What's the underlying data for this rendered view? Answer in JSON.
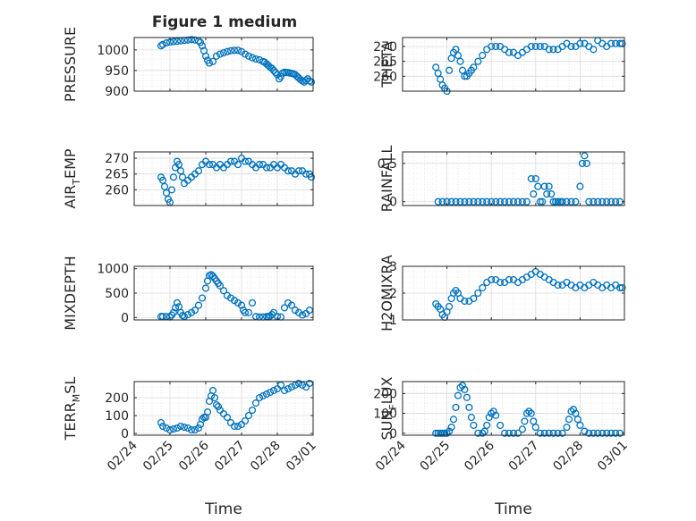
{
  "figure": {
    "title": "Figure 1 medium"
  },
  "style": {
    "marker_color": "#0072BD",
    "axis_color": "#262626",
    "grid_color": "#dcdcdc",
    "background": "#ffffff"
  },
  "chart_data": [
    {
      "type": "scatter",
      "ylabel": "PRESSURE",
      "ylim": [
        900,
        1030
      ],
      "yticks": [
        900,
        950,
        1000
      ],
      "ytick_labels": [
        "900",
        "950",
        "1000"
      ],
      "xlim": [
        0,
        5
      ],
      "xticks": [
        0,
        1,
        2,
        3,
        4,
        5
      ],
      "xtick_labels": [],
      "xlabel": "",
      "title": "Figure 1 medium",
      "x": [
        0.75,
        0.8,
        0.9,
        1.0,
        1.1,
        1.2,
        1.3,
        1.4,
        1.5,
        1.6,
        1.7,
        1.8,
        1.85,
        1.9,
        1.95,
        2.0,
        2.05,
        2.1,
        2.2,
        2.3,
        2.4,
        2.5,
        2.6,
        2.7,
        2.8,
        2.9,
        3.0,
        3.1,
        3.2,
        3.3,
        3.4,
        3.5,
        3.6,
        3.65,
        3.7,
        3.75,
        3.8,
        3.85,
        3.9,
        3.95,
        4.0,
        4.05,
        4.1,
        4.15,
        4.2,
        4.25,
        4.3,
        4.35,
        4.4,
        4.45,
        4.5,
        4.55,
        4.6,
        4.65,
        4.7,
        4.75,
        4.8,
        4.85,
        4.9,
        4.95
      ],
      "y": [
        1010,
        1013,
        1017,
        1019,
        1020,
        1021,
        1022,
        1023,
        1024,
        1025,
        1024,
        1022,
        1018,
        1010,
        998,
        985,
        975,
        968,
        972,
        985,
        990,
        993,
        996,
        998,
        999,
        999,
        996,
        990,
        985,
        981,
        978,
        976,
        972,
        970,
        966,
        962,
        958,
        955,
        950,
        945,
        940,
        930,
        935,
        944,
        946,
        945,
        945,
        944,
        943,
        942,
        940,
        936,
        932,
        928,
        925,
        922,
        926,
        930,
        925,
        922
      ]
    },
    {
      "type": "scatter",
      "ylabel": "THETA",
      "ylim": [
        255,
        273
      ],
      "yticks": [
        260,
        265,
        270
      ],
      "ytick_labels": [
        "260",
        "265",
        "270"
      ],
      "xlim": [
        0,
        5
      ],
      "xticks": [
        0,
        1,
        2,
        3,
        4,
        5
      ],
      "xtick_labels": [],
      "xlabel": "",
      "x": [
        0.75,
        0.8,
        0.85,
        0.9,
        0.95,
        1.0,
        1.05,
        1.1,
        1.15,
        1.2,
        1.25,
        1.3,
        1.35,
        1.4,
        1.45,
        1.5,
        1.55,
        1.6,
        1.7,
        1.8,
        1.9,
        2.0,
        2.1,
        2.2,
        2.3,
        2.4,
        2.5,
        2.6,
        2.7,
        2.8,
        2.9,
        3.0,
        3.1,
        3.2,
        3.3,
        3.4,
        3.5,
        3.6,
        3.7,
        3.8,
        3.9,
        4.0,
        4.1,
        4.2,
        4.3,
        4.4,
        4.5,
        4.6,
        4.7,
        4.8,
        4.9,
        4.95
      ],
      "y": [
        263,
        261,
        259,
        257,
        256,
        255,
        262,
        266,
        268,
        269,
        267,
        265,
        262,
        260,
        260,
        261,
        262,
        263,
        265,
        267,
        269,
        270,
        270,
        270,
        269,
        268,
        268,
        267,
        268,
        269,
        270,
        270,
        270,
        270,
        269,
        269,
        269,
        270,
        271,
        270,
        270,
        271,
        271,
        270,
        269,
        272,
        271,
        270,
        271,
        271,
        271,
        271
      ]
    },
    {
      "type": "scatter",
      "ylabel": "AIR_TEMP",
      "ylabel_base": "AIR",
      "ylabel_sub": "T",
      "ylabel_rest": "EMP",
      "ylim": [
        255,
        272
      ],
      "yticks": [
        260,
        265,
        270
      ],
      "ytick_labels": [
        "260",
        "265",
        "270"
      ],
      "xlim": [
        0,
        5
      ],
      "xticks": [
        0,
        1,
        2,
        3,
        4,
        5
      ],
      "xtick_labels": [],
      "xlabel": "",
      "x": [
        0.75,
        0.8,
        0.85,
        0.9,
        0.95,
        1.0,
        1.05,
        1.1,
        1.15,
        1.2,
        1.25,
        1.3,
        1.35,
        1.4,
        1.5,
        1.6,
        1.7,
        1.8,
        1.9,
        2.0,
        2.1,
        2.2,
        2.3,
        2.4,
        2.5,
        2.6,
        2.7,
        2.8,
        2.9,
        3.0,
        3.1,
        3.2,
        3.3,
        3.4,
        3.5,
        3.6,
        3.7,
        3.8,
        3.9,
        4.0,
        4.1,
        4.2,
        4.3,
        4.4,
        4.5,
        4.6,
        4.7,
        4.8,
        4.9,
        4.95
      ],
      "y": [
        264,
        263,
        261,
        259,
        257,
        256,
        260,
        264,
        267,
        269,
        268,
        266,
        264,
        262,
        263,
        264,
        265,
        266,
        268,
        269,
        268,
        268,
        267,
        268,
        267,
        268,
        269,
        269,
        268,
        270,
        269,
        269,
        268,
        267,
        268,
        268,
        267,
        267,
        268,
        267,
        268,
        267,
        266,
        266,
        265,
        266,
        266,
        265,
        265,
        264
      ]
    },
    {
      "type": "scatter",
      "ylabel": "RAINFALL",
      "ylim": [
        -0.05,
        0.65
      ],
      "yticks": [
        0,
        0.5
      ],
      "ytick_labels": [
        "0",
        "0.5"
      ],
      "xlim": [
        0,
        5
      ],
      "xticks": [
        0,
        1,
        2,
        3,
        4,
        5
      ],
      "xtick_labels": [],
      "xlabel": "",
      "x": [
        0.8,
        0.9,
        1.0,
        1.1,
        1.2,
        1.3,
        1.4,
        1.5,
        1.6,
        1.7,
        1.8,
        1.9,
        2.0,
        2.1,
        2.2,
        2.3,
        2.4,
        2.5,
        2.6,
        2.7,
        2.8,
        2.9,
        2.95,
        3.0,
        3.05,
        3.1,
        3.15,
        3.2,
        3.25,
        3.3,
        3.35,
        3.4,
        3.45,
        3.5,
        3.55,
        3.6,
        3.7,
        3.8,
        3.9,
        4.0,
        4.05,
        4.1,
        4.15,
        4.2,
        4.3,
        4.4,
        4.5,
        4.6,
        4.7,
        4.8,
        4.9
      ],
      "y": [
        0,
        0,
        0,
        0,
        0,
        0,
        0,
        0,
        0,
        0,
        0,
        0,
        0,
        0,
        0,
        0,
        0,
        0,
        0,
        0,
        0,
        0.3,
        0.1,
        0.3,
        0.2,
        0,
        0,
        0.2,
        0.1,
        0.2,
        0.1,
        0,
        0,
        0,
        0,
        0,
        0,
        0,
        0,
        0.2,
        0.5,
        0.6,
        0.5,
        0,
        0,
        0,
        0,
        0,
        0,
        0,
        0
      ]
    },
    {
      "type": "scatter",
      "ylabel": "MIXDEPTH",
      "ylim": [
        -50,
        1050
      ],
      "yticks": [
        0,
        500,
        1000
      ],
      "ytick_labels": [
        "0",
        "500",
        "1000"
      ],
      "xlim": [
        0,
        5
      ],
      "xticks": [
        0,
        1,
        2,
        3,
        4,
        5
      ],
      "xtick_labels": [],
      "xlabel": "",
      "x": [
        0.75,
        0.8,
        0.9,
        1.0,
        1.05,
        1.1,
        1.15,
        1.2,
        1.25,
        1.3,
        1.35,
        1.4,
        1.5,
        1.6,
        1.7,
        1.8,
        1.9,
        2.0,
        2.05,
        2.1,
        2.15,
        2.2,
        2.25,
        2.3,
        2.35,
        2.4,
        2.5,
        2.6,
        2.7,
        2.8,
        2.9,
        3.0,
        3.05,
        3.1,
        3.2,
        3.3,
        3.4,
        3.5,
        3.6,
        3.7,
        3.75,
        3.8,
        3.85,
        3.9,
        4.0,
        4.1,
        4.2,
        4.3,
        4.4,
        4.5,
        4.6,
        4.7,
        4.8,
        4.9
      ],
      "y": [
        20,
        20,
        20,
        10,
        50,
        100,
        200,
        300,
        220,
        100,
        40,
        20,
        60,
        100,
        150,
        250,
        400,
        600,
        750,
        860,
        880,
        850,
        800,
        750,
        700,
        650,
        550,
        450,
        400,
        350,
        300,
        250,
        150,
        100,
        100,
        300,
        20,
        10,
        10,
        20,
        10,
        30,
        60,
        100,
        20,
        10,
        200,
        300,
        250,
        150,
        100,
        50,
        80,
        150
      ]
    },
    {
      "type": "scatter",
      "ylabel": "H2OMIXRA",
      "ylim": [
        1,
        3
      ],
      "yticks": [
        1,
        2,
        3
      ],
      "ytick_labels": [
        "1",
        "2",
        "3"
      ],
      "xlim": [
        0,
        5
      ],
      "xticks": [
        0,
        1,
        2,
        3,
        4,
        5
      ],
      "xtick_labels": [],
      "xlabel": "",
      "x": [
        0.75,
        0.8,
        0.85,
        0.9,
        0.95,
        1.0,
        1.05,
        1.1,
        1.15,
        1.2,
        1.25,
        1.3,
        1.4,
        1.5,
        1.6,
        1.7,
        1.8,
        1.9,
        2.0,
        2.1,
        2.2,
        2.3,
        2.4,
        2.5,
        2.6,
        2.7,
        2.8,
        2.9,
        3.0,
        3.1,
        3.2,
        3.3,
        3.4,
        3.5,
        3.6,
        3.7,
        3.8,
        3.9,
        4.0,
        4.1,
        4.2,
        4.3,
        4.4,
        4.5,
        4.6,
        4.7,
        4.8,
        4.9,
        4.95
      ],
      "y": [
        1.6,
        1.5,
        1.4,
        1.2,
        1.1,
        1.3,
        1.5,
        1.8,
        2.0,
        2.1,
        2.0,
        1.8,
        1.7,
        1.7,
        1.8,
        2.0,
        2.2,
        2.4,
        2.5,
        2.5,
        2.4,
        2.4,
        2.5,
        2.5,
        2.4,
        2.5,
        2.6,
        2.7,
        2.8,
        2.7,
        2.6,
        2.5,
        2.4,
        2.3,
        2.3,
        2.4,
        2.3,
        2.2,
        2.3,
        2.2,
        2.3,
        2.4,
        2.3,
        2.2,
        2.3,
        2.2,
        2.3,
        2.2,
        2.2
      ]
    },
    {
      "type": "scatter",
      "ylabel": "TERR_MSL",
      "ylabel_base": "TERR",
      "ylabel_sub": "M",
      "ylabel_rest": "SL",
      "ylim": [
        -10,
        290
      ],
      "yticks": [
        0,
        100,
        200
      ],
      "ytick_labels": [
        "0",
        "100",
        "200"
      ],
      "xlim": [
        0,
        5
      ],
      "xticks": [
        0,
        1,
        2,
        3,
        4,
        5
      ],
      "xtick_labels": [
        "02/24",
        "02/25",
        "02/26",
        "02/27",
        "02/28",
        "03/01"
      ],
      "xlabel": "Time",
      "x": [
        0.75,
        0.8,
        0.9,
        1.0,
        1.1,
        1.2,
        1.3,
        1.4,
        1.5,
        1.6,
        1.7,
        1.8,
        1.85,
        1.9,
        1.95,
        2.0,
        2.05,
        2.1,
        2.15,
        2.2,
        2.25,
        2.3,
        2.35,
        2.4,
        2.5,
        2.6,
        2.7,
        2.8,
        2.9,
        3.0,
        3.1,
        3.2,
        3.3,
        3.4,
        3.5,
        3.6,
        3.7,
        3.8,
        3.9,
        4.0,
        4.1,
        4.2,
        4.3,
        4.4,
        4.5,
        4.6,
        4.7,
        4.8,
        4.9
      ],
      "y": [
        60,
        40,
        30,
        20,
        25,
        30,
        40,
        35,
        30,
        20,
        20,
        30,
        50,
        80,
        90,
        90,
        120,
        180,
        210,
        240,
        200,
        160,
        150,
        130,
        110,
        90,
        60,
        40,
        40,
        50,
        70,
        100,
        130,
        170,
        200,
        210,
        220,
        230,
        240,
        250,
        270,
        240,
        250,
        260,
        270,
        280,
        270,
        260,
        280
      ]
    },
    {
      "type": "scatter",
      "ylabel": "SUN_FLUX",
      "ylabel_base": "SUN",
      "ylabel_sub": "F",
      "ylabel_rest": "LUX",
      "ylim": [
        -10,
        260
      ],
      "yticks": [
        0,
        100,
        200
      ],
      "ytick_labels": [
        "0",
        "100",
        "200"
      ],
      "xlim": [
        0,
        5
      ],
      "xticks": [
        0,
        1,
        2,
        3,
        4,
        5
      ],
      "xtick_labels": [
        "02/24",
        "02/25",
        "02/26",
        "02/27",
        "02/28",
        "03/01"
      ],
      "xlabel": "Time",
      "x": [
        0.75,
        0.8,
        0.85,
        0.9,
        0.95,
        1.0,
        1.05,
        1.1,
        1.15,
        1.2,
        1.25,
        1.3,
        1.35,
        1.4,
        1.45,
        1.5,
        1.55,
        1.6,
        1.7,
        1.8,
        1.85,
        1.9,
        1.95,
        2.0,
        2.05,
        2.1,
        2.2,
        2.3,
        2.4,
        2.5,
        2.6,
        2.7,
        2.75,
        2.8,
        2.85,
        2.9,
        2.95,
        3.0,
        3.1,
        3.2,
        3.3,
        3.4,
        3.5,
        3.6,
        3.7,
        3.75,
        3.8,
        3.85,
        3.9,
        3.95,
        4.0,
        4.1,
        4.2,
        4.3,
        4.4,
        4.5,
        4.6,
        4.7,
        4.8,
        4.9
      ],
      "y": [
        0,
        0,
        0,
        0,
        0,
        0,
        10,
        30,
        70,
        130,
        190,
        230,
        240,
        220,
        180,
        130,
        80,
        40,
        0,
        0,
        10,
        40,
        80,
        100,
        110,
        90,
        40,
        0,
        0,
        0,
        0,
        20,
        60,
        100,
        110,
        100,
        60,
        30,
        0,
        0,
        0,
        0,
        0,
        0,
        30,
        70,
        110,
        120,
        100,
        70,
        40,
        10,
        0,
        0,
        0,
        0,
        0,
        0,
        0,
        0
      ]
    }
  ]
}
